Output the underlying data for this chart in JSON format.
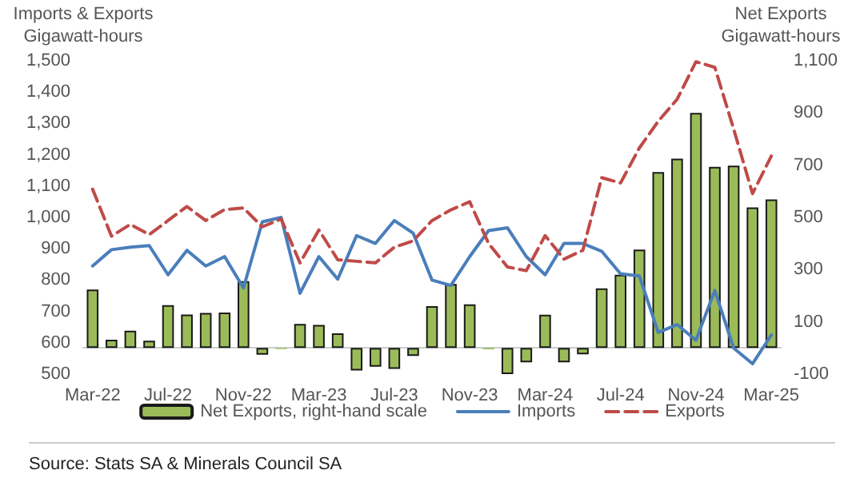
{
  "chart_data": {
    "type": "bar",
    "ylabel": "Imports & Exports\nGigawatt-hours",
    "y2label": "Net Exports\nGigawatt-hours",
    "categories": [
      "Mar-22",
      null,
      null,
      null,
      "Jul-22",
      null,
      null,
      null,
      "Nov-22",
      null,
      null,
      null,
      "Mar-23",
      null,
      null,
      null,
      "Jul-23",
      null,
      null,
      null,
      "Nov-23",
      null,
      null,
      null,
      "Mar-24",
      null,
      null,
      null,
      "Jul-24",
      null,
      null,
      null,
      "Nov-24",
      null,
      null,
      null,
      "Mar-25"
    ],
    "series": [
      {
        "name": "Net Exports, right-hand scale",
        "axis": "y2",
        "color": "#9bbb59",
        "values": [
          224,
          32,
          66,
          28,
          164,
          128,
          134,
          136,
          256,
          -26,
          -4,
          92,
          88,
          56,
          -86,
          -72,
          -80,
          -30,
          160,
          245,
          167,
          -5,
          -100,
          -55,
          127,
          -55,
          -24,
          228,
          280,
          377,
          674,
          725,
          900,
          694,
          698,
          538,
          569
        ]
      },
      {
        "name": "Imports",
        "type": "line",
        "color": "#4a7ebb",
        "line_style": "solid",
        "values": [
          845,
          897,
          905,
          910,
          817,
          895,
          845,
          875,
          775,
          986,
          1000,
          758,
          875,
          803,
          942,
          917,
          990,
          950,
          800,
          783,
          875,
          958,
          967,
          875,
          817,
          917,
          917,
          892,
          820,
          813,
          633,
          658,
          608,
          767,
          583,
          533,
          625
        ]
      },
      {
        "name": "Exports",
        "type": "line",
        "color": "#be4b48",
        "line_style": "dashed",
        "values": [
          1090,
          940,
          978,
          945,
          990,
          1035,
          990,
          1025,
          1030,
          970,
          995,
          855,
          960,
          865,
          860,
          855,
          905,
          925,
          990,
          1024,
          1050,
          917,
          842,
          830,
          942,
          867,
          895,
          1127,
          1110,
          1222,
          1307,
          1377,
          1497,
          1479,
          1282,
          1076,
          1196
        ]
      }
    ],
    "ylim": [
      500,
      1500
    ],
    "yticks": [
      500,
      600,
      700,
      800,
      900,
      {
        "value": 1000,
        "label": "1,000"
      },
      {
        "value": 1100,
        "label": "1,100"
      },
      {
        "value": 1200,
        "label": "1,200"
      },
      {
        "value": 1300,
        "label": "1,300"
      },
      {
        "value": 1400,
        "label": "1,400"
      },
      {
        "value": 1500,
        "label": "1,500"
      }
    ],
    "y2lim": [
      -100,
      1100
    ],
    "y2ticks": [
      -100,
      100,
      300,
      500,
      700,
      900,
      {
        "value": 1100,
        "label": "1,100"
      }
    ],
    "grid": false,
    "legend": "bottom",
    "marker": "none",
    "annotations": [
      "Source: Stats SA & Minerals Council SA"
    ]
  }
}
